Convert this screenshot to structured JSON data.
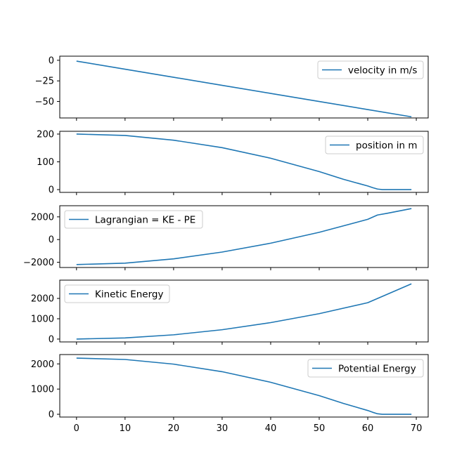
{
  "chart_data": [
    {
      "type": "line",
      "ylim": [
        -70,
        5
      ],
      "xlim": [
        -3.45,
        72.45
      ],
      "yticks": [
        0,
        -25,
        -50
      ],
      "ytick_labels": [
        "0",
        "−25",
        "−50"
      ],
      "legend": "upper right",
      "series": [
        {
          "name": "velocity in m/s",
          "color": "#1f77b4",
          "x": [
            0,
            10,
            20,
            30,
            40,
            50,
            60,
            69
          ],
          "y": [
            -1,
            -10.8,
            -20.6,
            -30.4,
            -40.2,
            -50,
            -59.8,
            -68.6
          ]
        }
      ]
    },
    {
      "type": "line",
      "ylim": [
        -10,
        210
      ],
      "xlim": [
        -3.45,
        72.45
      ],
      "yticks": [
        200,
        100,
        0
      ],
      "ytick_labels": [
        "200",
        "100",
        "0"
      ],
      "legend": "upper right",
      "series": [
        {
          "name": "position in m",
          "color": "#1f77b4",
          "x": [
            0,
            10,
            20,
            30,
            40,
            50,
            55,
            60,
            61,
            62,
            63,
            64,
            69
          ],
          "y": [
            200,
            195,
            178,
            151,
            113,
            65,
            37,
            13,
            7,
            2,
            0,
            0,
            0
          ]
        }
      ]
    },
    {
      "type": "line",
      "ylim": [
        -2460,
        2980
      ],
      "xlim": [
        -3.45,
        72.45
      ],
      "yticks": [
        2000,
        0,
        -2000
      ],
      "ytick_labels": [
        "2000",
        "0",
        "−2000"
      ],
      "legend": "upper left",
      "series": [
        {
          "name": "Lagrangian = KE - PE",
          "color": "#1f77b4",
          "x": [
            0,
            10,
            20,
            30,
            40,
            50,
            60,
            62,
            64,
            69
          ],
          "y": [
            -2200,
            -2080,
            -1700,
            -1100,
            -320,
            640,
            1780,
            2160,
            2310,
            2730
          ]
        }
      ]
    },
    {
      "type": "line",
      "ylim": [
        -140,
        2900
      ],
      "xlim": [
        -3.45,
        72.45
      ],
      "yticks": [
        2000,
        1000,
        0
      ],
      "ytick_labels": [
        "2000",
        "1000",
        "0"
      ],
      "legend": "upper left",
      "series": [
        {
          "name": "Kinetic Energy",
          "color": "#1f77b4",
          "x": [
            0,
            10,
            20,
            30,
            40,
            50,
            60,
            69
          ],
          "y": [
            0,
            58,
            210,
            460,
            810,
            1250,
            1790,
            2720
          ]
        }
      ]
    },
    {
      "type": "line",
      "ylim": [
        -110,
        2370
      ],
      "xlim": [
        -3.45,
        72.45
      ],
      "yticks": [
        2000,
        1000,
        0
      ],
      "ytick_labels": [
        "2000",
        "1000",
        "0"
      ],
      "legend": "upper right",
      "series": [
        {
          "name": "Potential Energy",
          "color": "#1f77b4",
          "x": [
            0,
            10,
            20,
            30,
            40,
            50,
            55,
            60,
            61,
            62,
            63,
            64,
            69
          ],
          "y": [
            2230,
            2175,
            1990,
            1690,
            1270,
            740,
            430,
            150,
            80,
            20,
            0,
            0,
            0
          ]
        }
      ]
    }
  ],
  "shared_x_axis": {
    "ticks": [
      0,
      10,
      20,
      30,
      40,
      50,
      60,
      70
    ],
    "tick_labels": [
      "0",
      "10",
      "20",
      "30",
      "40",
      "50",
      "60",
      "70"
    ]
  }
}
